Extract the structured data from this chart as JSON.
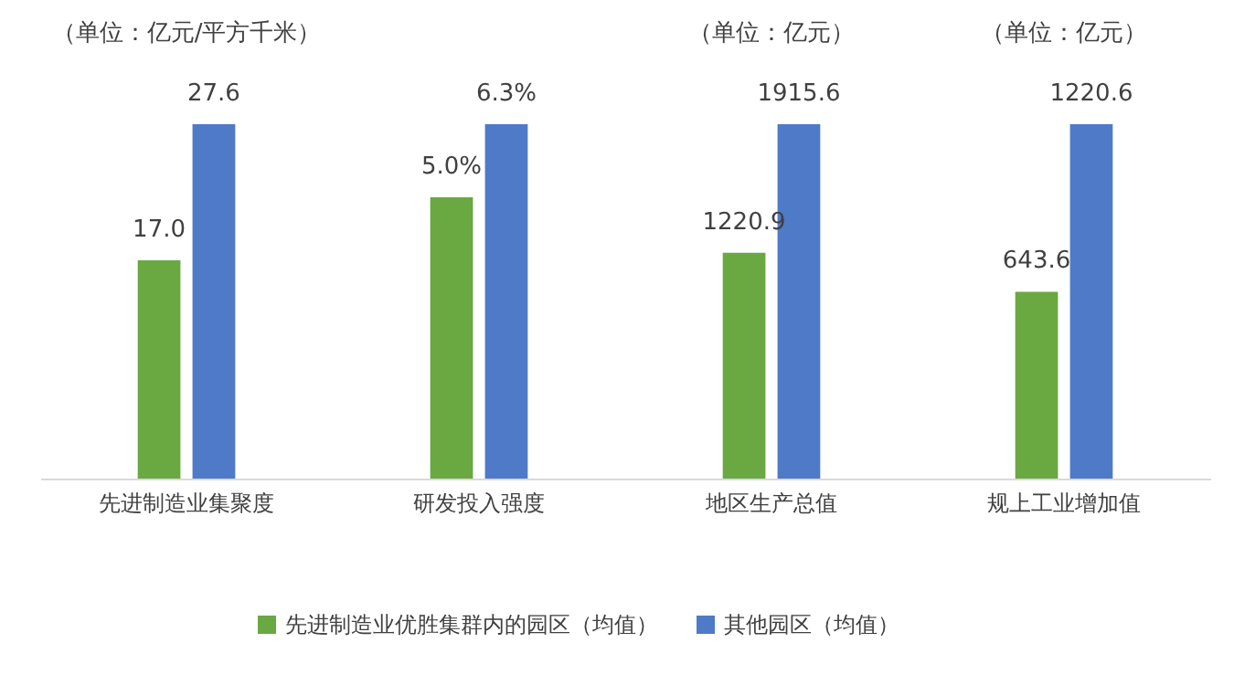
{
  "chart_data": [
    {
      "type": "bar",
      "categories": [
        "先进制造业集聚度"
      ],
      "series": [
        {
          "name": "先进制造业优胜集群内的园区（均值）",
          "color": "#6aa842",
          "values": [
            17.0
          ],
          "value_labels": [
            "17.0"
          ]
        },
        {
          "name": "其他园区（均值）",
          "color": "#4f7ac7",
          "values": [
            27.6
          ],
          "value_labels": [
            "27.6"
          ]
        }
      ],
      "annotations": [
        "（单位：亿元/平方千米）"
      ],
      "legend": "bottom"
    },
    {
      "type": "bar",
      "categories": [
        "研发投入强度"
      ],
      "series": [
        {
          "color": "#6aa842",
          "values": [
            5.0
          ],
          "value_labels": [
            "5.0%"
          ]
        },
        {
          "color": "#4f7ac7",
          "values": [
            6.3
          ],
          "value_labels": [
            "6.3%"
          ]
        }
      ]
    },
    {
      "type": "bar",
      "categories": [
        "地区生产总值"
      ],
      "series": [
        {
          "color": "#6aa842",
          "values": [
            1220.9
          ],
          "value_labels": [
            "1220.9"
          ]
        },
        {
          "color": "#4f7ac7",
          "values": [
            1915.6
          ],
          "value_labels": [
            "1915.6"
          ]
        }
      ],
      "annotations": [
        "（单位：亿元）"
      ]
    },
    {
      "type": "bar",
      "categories": [
        "规上工业增加值"
      ],
      "series": [
        {
          "color": "#6aa842",
          "values": [
            643.6
          ],
          "value_labels": [
            "643.6"
          ]
        },
        {
          "color": "#4f7ac7",
          "values": [
            1220.6
          ],
          "value_labels": [
            "1220.6"
          ]
        }
      ],
      "annotations": [
        "（单位：亿元）"
      ]
    }
  ]
}
